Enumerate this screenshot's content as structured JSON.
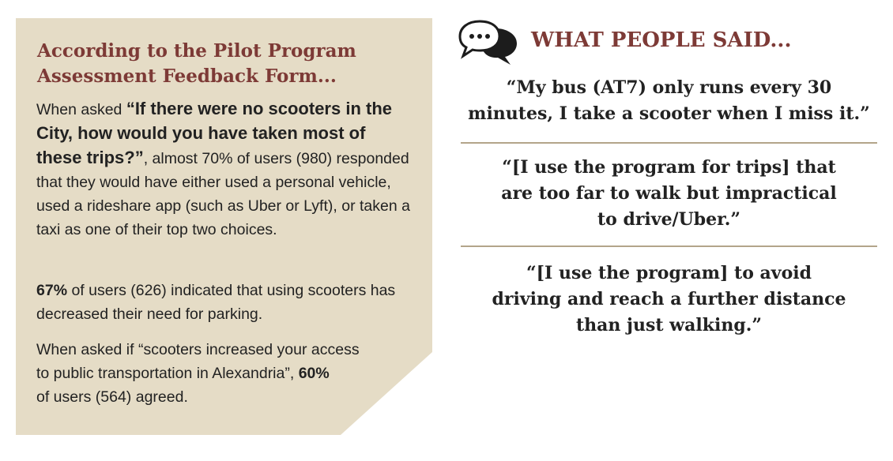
{
  "left": {
    "title_line1": "According to the Pilot Program",
    "title_line2": "Assessment Feedback Form...",
    "p1_intro": "When asked ",
    "p1_question": "“If there were no scooters in the City, how would you have taken most of these trips?”",
    "p1_rest": ", almost 70% of users (980) responded that they would have either used a personal vehicle, used a rideshare app (such as Uber or Lyft), or taken a taxi as one of their top two choices.",
    "p2_pct": "67%",
    "p2_rest": " of users (626) indicated that using scooters has decreased their need for parking.",
    "p3_line1": "When asked if “scooters increased your access",
    "p3_line2_start": "to public transportation in Alexandria”, ",
    "p3_pct": "60%",
    "p3_line3": "of users (564) agreed."
  },
  "right": {
    "icon": "speech-bubbles-icon",
    "title": "WHAT PEOPLE SAID...",
    "quotes": [
      {
        "lines": [
          "“My bus (AT7) only runs every 30",
          "minutes, I take a scooter when I miss it.”"
        ]
      },
      {
        "lines": [
          "“[I use the program for trips] that",
          "are too far to walk but impractical",
          "to drive/Uber.”"
        ]
      },
      {
        "lines": [
          "“[I use the program] to avoid",
          "driving and reach a further distance",
          "than just walking.”"
        ]
      }
    ]
  },
  "colors": {
    "panel": "#e5dcc6",
    "accent": "#7d3a36",
    "divider": "#b3a58a",
    "text": "#222222"
  }
}
